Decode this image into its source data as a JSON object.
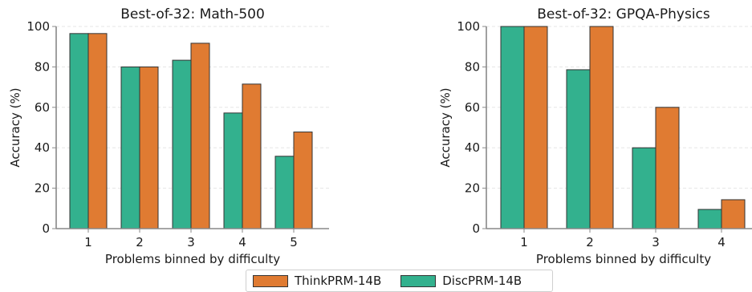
{
  "colors": {
    "ThinkPRM-14B": "#e07b32",
    "DiscPRM-14B": "#33b18e",
    "bar_edge": "#333333",
    "grid": "#e5e5e5",
    "axis": "#888888"
  },
  "legend": {
    "items": [
      {
        "label": "ThinkPRM-14B",
        "color": "#e07b32"
      },
      {
        "label": "DiscPRM-14B",
        "color": "#33b18e"
      }
    ],
    "placement": "bottom-center"
  },
  "chart_data": [
    {
      "type": "bar",
      "title": "Best-of-32: Math-500",
      "xlabel": "Problems binned by difficulty",
      "ylabel": "Accuracy (%)",
      "categories": [
        "1",
        "2",
        "3",
        "4",
        "5"
      ],
      "ylim": [
        0,
        100
      ],
      "yticks": [
        0,
        20,
        40,
        60,
        80,
        100
      ],
      "grid": "horizontal dashed",
      "series": [
        {
          "name": "DiscPRM-14B",
          "values": [
            96.5,
            80.0,
            83.3,
            57.2,
            35.8
          ]
        },
        {
          "name": "ThinkPRM-14B",
          "values": [
            96.5,
            80.0,
            91.7,
            71.5,
            47.8
          ]
        }
      ]
    },
    {
      "type": "bar",
      "title": "Best-of-32: GPQA-Physics",
      "xlabel": "Problems binned by difficulty",
      "ylabel": "Accuracy (%)",
      "categories": [
        "1",
        "2",
        "3",
        "4"
      ],
      "ylim": [
        0,
        100
      ],
      "yticks": [
        0,
        20,
        40,
        60,
        80,
        100
      ],
      "grid": "horizontal dashed",
      "series": [
        {
          "name": "DiscPRM-14B",
          "values": [
            100.0,
            78.6,
            40.0,
            9.5
          ]
        },
        {
          "name": "ThinkPRM-14B",
          "values": [
            100.0,
            100.0,
            60.0,
            14.3
          ]
        }
      ]
    }
  ]
}
